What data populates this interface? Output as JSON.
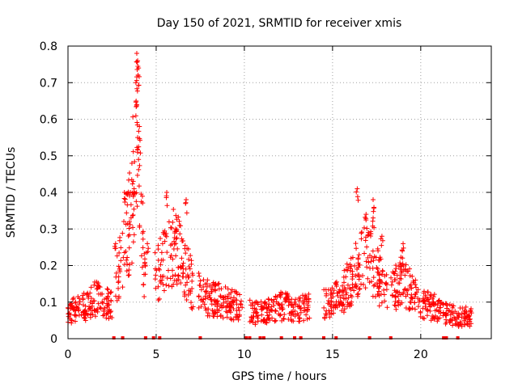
{
  "chart_data": {
    "type": "scatter",
    "title": "Day 150 of 2021, SRMTID for receiver xmis",
    "xlabel": "GPS time / hours",
    "ylabel": "SRMTID / TECUs",
    "xlim": [
      0,
      24
    ],
    "ylim": [
      0,
      0.8
    ],
    "x_ticks": [
      0,
      5,
      10,
      15,
      20
    ],
    "y_ticks": [
      0,
      0.1,
      0.2,
      0.3,
      0.4,
      0.5,
      0.6,
      0.7,
      0.8
    ],
    "x_tick_labels": [
      "0",
      "5",
      "10",
      "15",
      "20"
    ],
    "y_tick_labels": [
      "0",
      "0.1",
      "0.2",
      "0.3",
      "0.4",
      "0.5",
      "0.6",
      "0.7",
      "0.8"
    ],
    "grid": true,
    "marker": "plus",
    "color": "#ff0000",
    "series": [
      {
        "name": "SRMTID",
        "profile": [
          [
            0.0,
            0.07
          ],
          [
            0.5,
            0.08
          ],
          [
            1.0,
            0.09
          ],
          [
            1.5,
            0.11
          ],
          [
            2.0,
            0.1
          ],
          [
            2.5,
            0.09
          ],
          [
            2.8,
            0.18
          ],
          [
            3.2,
            0.25
          ],
          [
            3.6,
            0.35
          ],
          [
            3.9,
            0.62
          ],
          [
            4.1,
            0.5
          ],
          [
            4.3,
            0.2
          ],
          [
            5.0,
            0.17
          ],
          [
            5.5,
            0.22
          ],
          [
            6.0,
            0.25
          ],
          [
            6.5,
            0.22
          ],
          [
            7.0,
            0.15
          ],
          [
            7.5,
            0.12
          ],
          [
            8.0,
            0.11
          ],
          [
            9.0,
            0.1
          ],
          [
            10.0,
            0.08
          ],
          [
            10.5,
            0.07
          ],
          [
            11.0,
            0.07
          ],
          [
            12.0,
            0.09
          ],
          [
            13.0,
            0.08
          ],
          [
            14.0,
            0.09
          ],
          [
            15.0,
            0.1
          ],
          [
            15.5,
            0.12
          ],
          [
            16.0,
            0.16
          ],
          [
            16.5,
            0.2
          ],
          [
            17.0,
            0.22
          ],
          [
            17.5,
            0.18
          ],
          [
            18.0,
            0.12
          ],
          [
            19.0,
            0.16
          ],
          [
            19.5,
            0.13
          ],
          [
            20.0,
            0.1
          ],
          [
            21.0,
            0.08
          ],
          [
            22.0,
            0.06
          ],
          [
            22.9,
            0.06
          ]
        ],
        "segments": [
          [
            0.0,
            2.5
          ],
          [
            2.7,
            4.4
          ],
          [
            4.9,
            7.1
          ],
          [
            7.4,
            9.9
          ],
          [
            10.3,
            10.8
          ],
          [
            10.9,
            11.9
          ],
          [
            11.9,
            12.9
          ],
          [
            13.0,
            13.7
          ],
          [
            14.5,
            16.0
          ],
          [
            16.0,
            18.1
          ],
          [
            18.3,
            20.0
          ],
          [
            20.1,
            21.3
          ],
          [
            21.4,
            22.1
          ],
          [
            22.1,
            22.9
          ]
        ],
        "outliers": [
          [
            3.9,
            0.78
          ],
          [
            3.95,
            0.76
          ],
          [
            4.0,
            0.74
          ],
          [
            3.85,
            0.7
          ],
          [
            3.9,
            0.64
          ],
          [
            4.05,
            0.58
          ],
          [
            3.95,
            0.55
          ],
          [
            4.0,
            0.49
          ],
          [
            3.7,
            0.43
          ],
          [
            3.75,
            0.41
          ],
          [
            3.2,
            0.4
          ],
          [
            5.6,
            0.4
          ],
          [
            6.7,
            0.38
          ],
          [
            16.4,
            0.41
          ],
          [
            17.3,
            0.38
          ],
          [
            17.3,
            0.33
          ],
          [
            16.9,
            0.34
          ],
          [
            19.0,
            0.26
          ],
          [
            17.8,
            0.28
          ],
          [
            6.1,
            0.3
          ],
          [
            4.5,
            0.26
          ],
          [
            2.7,
            0.26
          ]
        ],
        "baseline_points": [
          2.6,
          3.1,
          4.4,
          4.85,
          5.2,
          7.5,
          10.1,
          10.3,
          10.9,
          11.1,
          12.1,
          12.85,
          13.2,
          14.5,
          15.2,
          17.1,
          18.3,
          21.3,
          21.45,
          22.1
        ]
      }
    ]
  }
}
